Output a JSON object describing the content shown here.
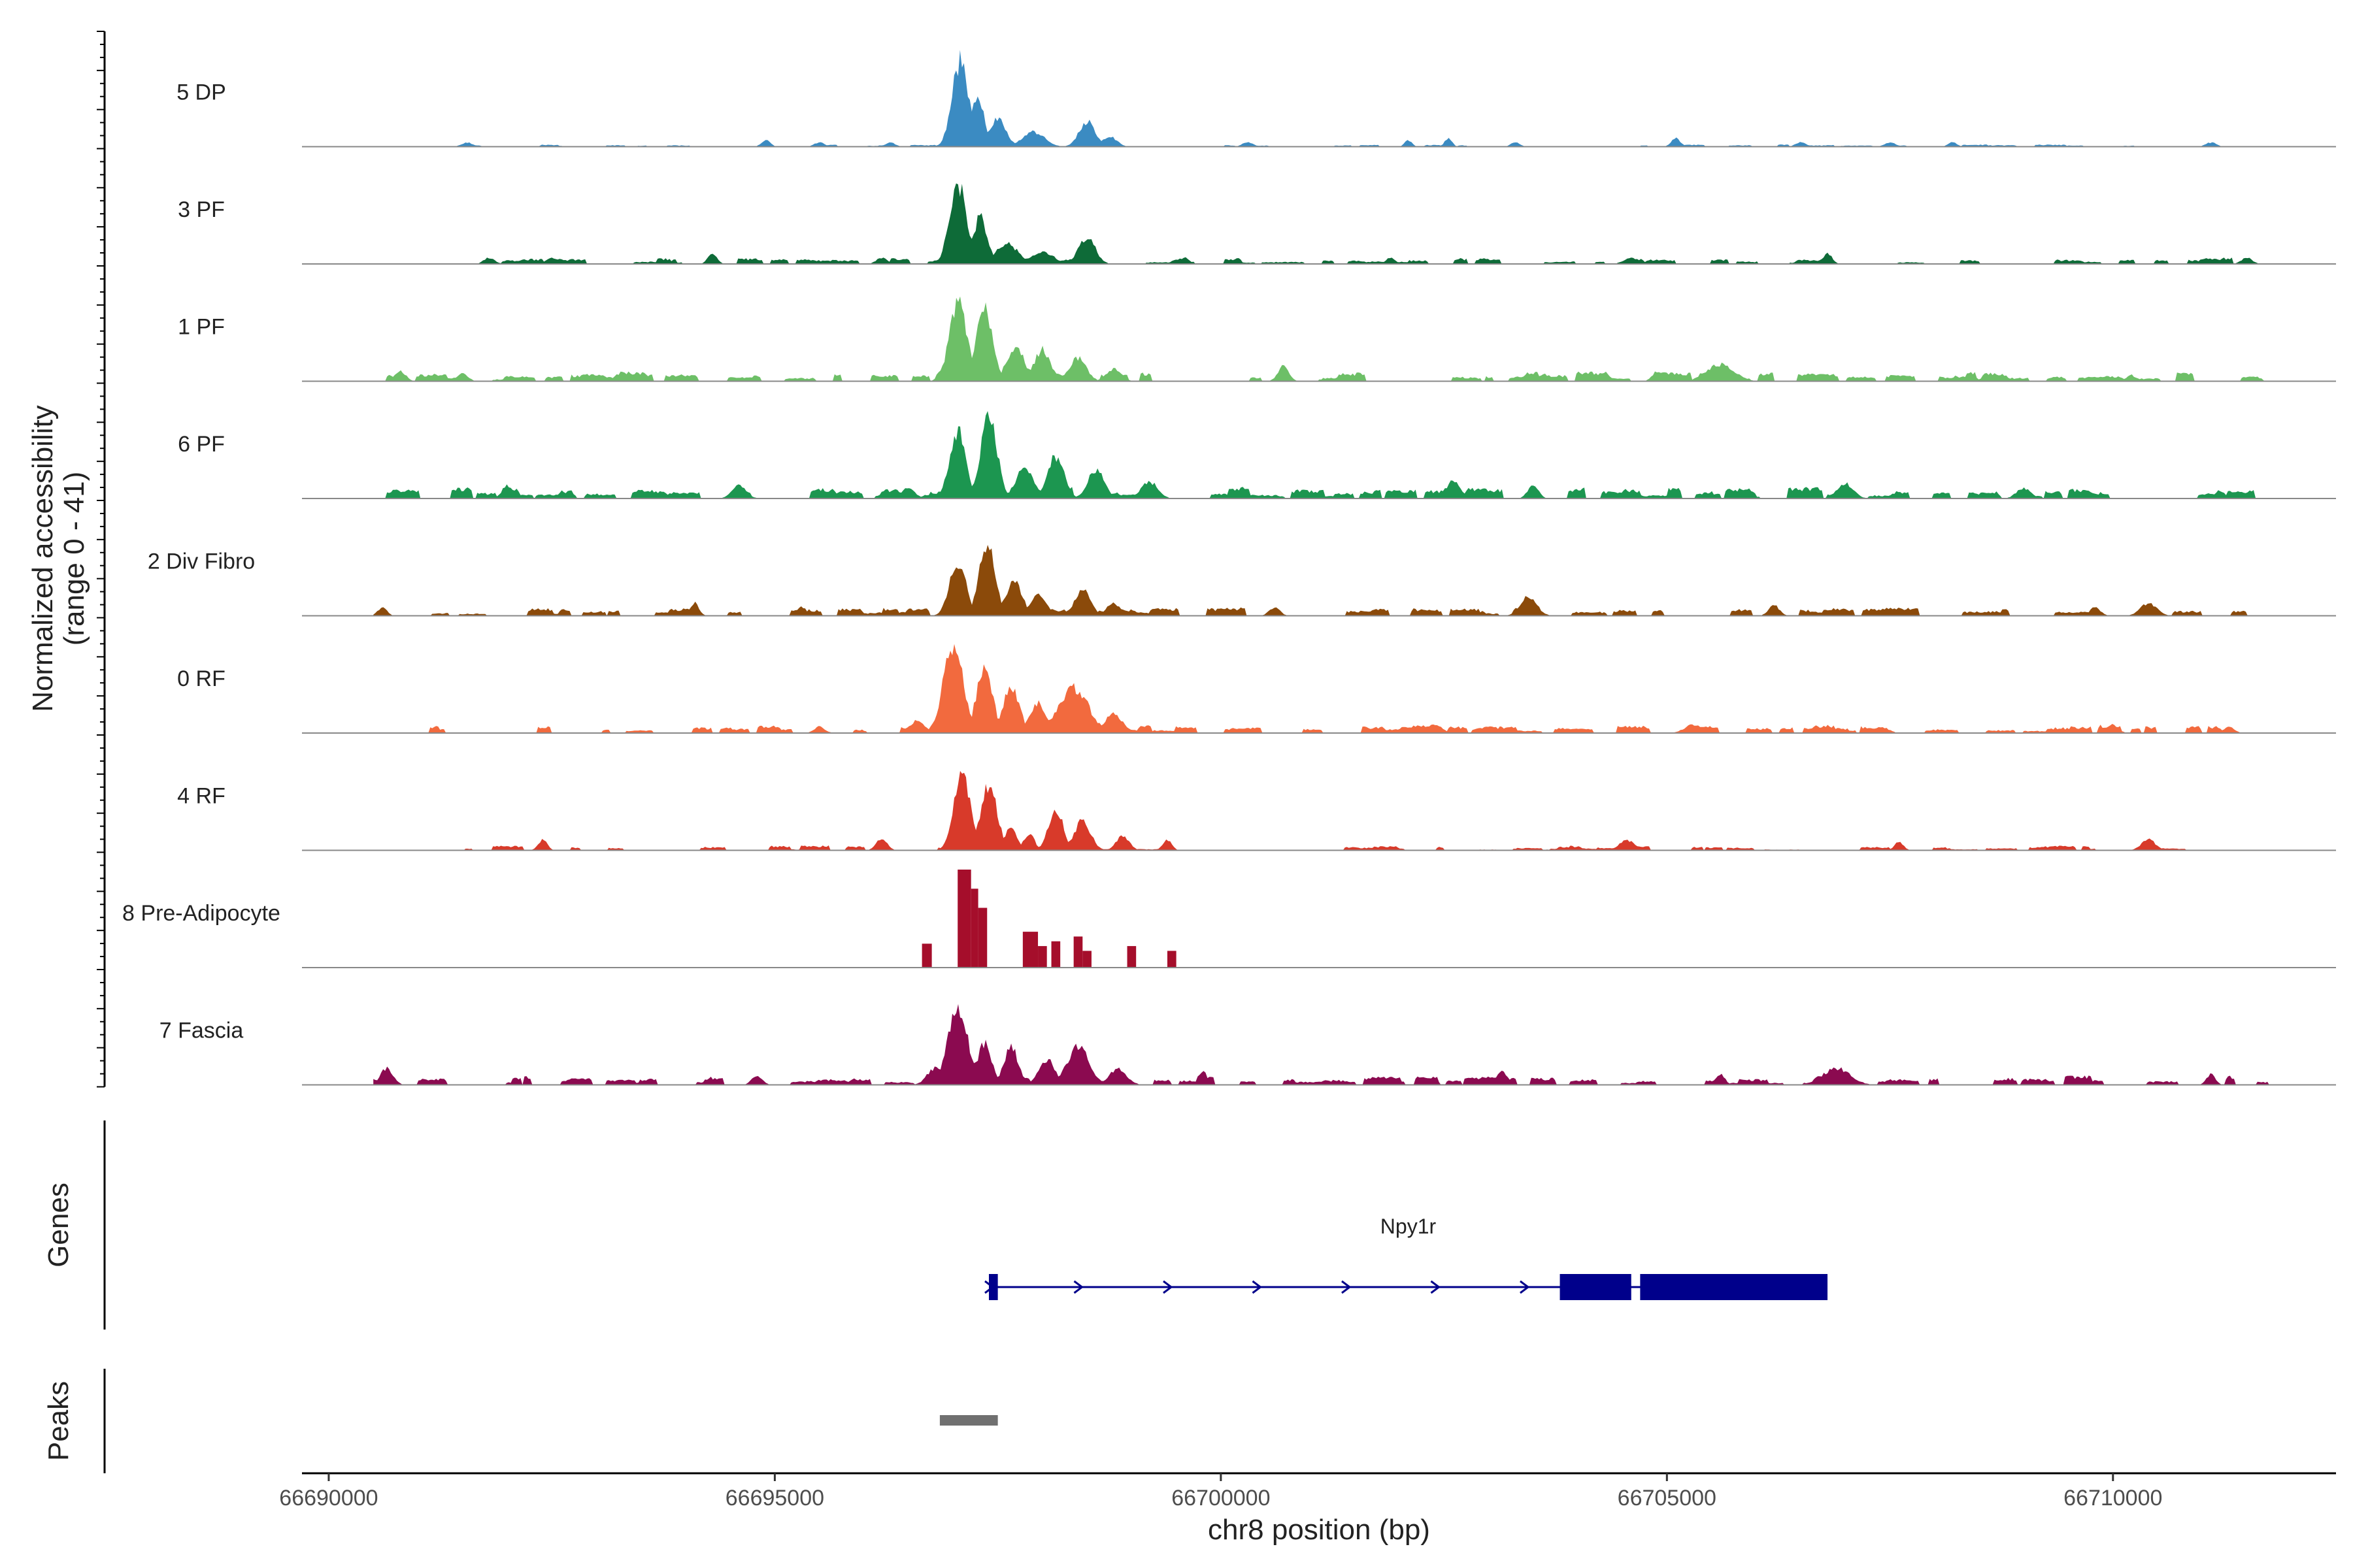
{
  "chart_data": {
    "type": "area",
    "chromosome": "chr8",
    "xlabel": "chr8 position (bp)",
    "ylabel_line1": "Normalized accessibility",
    "ylabel_line2": "(range 0 - 41)",
    "y_range": [
      0,
      41
    ],
    "x_range": [
      66689700,
      66712500
    ],
    "x_ticks": [
      66690000,
      66695000,
      66700000,
      66705000,
      66710000
    ],
    "x_tick_labels": [
      "66690000",
      "66695000",
      "66700000",
      "66705000",
      "66710000"
    ],
    "tracks": [
      {
        "name": "5 DP",
        "color": "#3B8BC2",
        "peaks": [
          [
            66697080,
            41,
            90
          ],
          [
            66697280,
            24,
            70
          ],
          [
            66697500,
            14,
            90
          ],
          [
            66697900,
            7,
            120
          ],
          [
            66698500,
            12,
            90
          ],
          [
            66698750,
            5,
            80
          ],
          [
            66691550,
            2,
            60
          ],
          [
            66694900,
            3,
            50
          ],
          [
            66695500,
            2,
            60
          ],
          [
            66696300,
            2,
            50
          ],
          [
            66700300,
            2,
            60
          ],
          [
            66702100,
            3,
            40
          ],
          [
            66702550,
            4,
            40
          ],
          [
            66703300,
            2,
            50
          ],
          [
            66705100,
            4,
            50
          ],
          [
            66706500,
            2,
            60
          ],
          [
            66707500,
            2,
            60
          ],
          [
            66708200,
            2,
            50
          ],
          [
            66711100,
            2,
            60
          ]
        ],
        "floor": 0.4,
        "noise": 0.6,
        "range": [
          66691400,
          66711300
        ]
      },
      {
        "name": "3 PF",
        "color": "#0E6B38",
        "peaks": [
          [
            66697050,
            39,
            90
          ],
          [
            66697300,
            22,
            80
          ],
          [
            66697600,
            10,
            120
          ],
          [
            66698000,
            6,
            120
          ],
          [
            66698500,
            13,
            90
          ],
          [
            66694300,
            5,
            50
          ],
          [
            66691800,
            3,
            60
          ],
          [
            66692500,
            3,
            60
          ],
          [
            66696200,
            3,
            60
          ],
          [
            66699600,
            3,
            50
          ],
          [
            66701900,
            3,
            50
          ],
          [
            66704600,
            3,
            80
          ],
          [
            66706800,
            5,
            50
          ],
          [
            66711500,
            3,
            60
          ]
        ],
        "floor": 0.6,
        "noise": 2.2,
        "range": [
          66691400,
          66711800
        ]
      },
      {
        "name": "1 PF",
        "color": "#6DBF67",
        "peaks": [
          [
            66697060,
            37,
            100
          ],
          [
            66697350,
            34,
            90
          ],
          [
            66697700,
            16,
            100
          ],
          [
            66698000,
            15,
            90
          ],
          [
            66698400,
            11,
            90
          ],
          [
            66698800,
            6,
            80
          ],
          [
            66690800,
            5,
            60
          ],
          [
            66691500,
            4,
            60
          ],
          [
            66700700,
            7,
            60
          ],
          [
            66705600,
            8,
            150
          ],
          [
            66704900,
            5,
            60
          ],
          [
            66708400,
            3,
            60
          ],
          [
            66710200,
            3,
            50
          ]
        ],
        "floor": 0.8,
        "noise": 3.5,
        "range": [
          66690500,
          66711700
        ]
      },
      {
        "name": "6 PF",
        "color": "#1C9650",
        "peaks": [
          [
            66697050,
            32,
            90
          ],
          [
            66697400,
            40,
            90
          ],
          [
            66697800,
            14,
            100
          ],
          [
            66698150,
            20,
            90
          ],
          [
            66698600,
            14,
            90
          ],
          [
            66699200,
            8,
            90
          ],
          [
            66692000,
            6,
            60
          ],
          [
            66694600,
            6,
            80
          ],
          [
            66696500,
            5,
            70
          ],
          [
            66702600,
            8,
            80
          ],
          [
            66703500,
            6,
            60
          ],
          [
            66707000,
            7,
            90
          ],
          [
            66709000,
            5,
            80
          ],
          [
            66711200,
            4,
            50
          ]
        ],
        "floor": 1.0,
        "noise": 4.0,
        "range": [
          66690500,
          66711600
        ]
      },
      {
        "name": "2 Div Fibro",
        "color": "#8B4A0A",
        "peaks": [
          [
            66697050,
            26,
            90
          ],
          [
            66697380,
            34,
            90
          ],
          [
            66697680,
            17,
            90
          ],
          [
            66697950,
            10,
            90
          ],
          [
            66698450,
            12,
            90
          ],
          [
            66698800,
            6,
            80
          ],
          [
            66695300,
            4,
            60
          ],
          [
            66694100,
            6,
            50
          ],
          [
            66690600,
            4,
            50
          ],
          [
            66700600,
            4,
            60
          ],
          [
            66703450,
            9,
            90
          ],
          [
            66706200,
            5,
            60
          ],
          [
            66710400,
            6,
            90
          ],
          [
            66709800,
            4,
            60
          ]
        ],
        "floor": 0.7,
        "noise": 2.8,
        "range": [
          66690500,
          66711600
        ]
      },
      {
        "name": "0 RF",
        "color": "#F26A3E",
        "peaks": [
          [
            66697000,
            41,
            110
          ],
          [
            66697350,
            30,
            90
          ],
          [
            66697650,
            22,
            90
          ],
          [
            66697950,
            14,
            90
          ],
          [
            66698350,
            22,
            160
          ],
          [
            66698800,
            9,
            100
          ],
          [
            66696600,
            6,
            80
          ],
          [
            66695500,
            3,
            60
          ],
          [
            66702400,
            4,
            80
          ],
          [
            66705300,
            4,
            100
          ],
          [
            66707400,
            3,
            80
          ],
          [
            66710000,
            4,
            60
          ],
          [
            66711300,
            3,
            60
          ]
        ],
        "floor": 1.0,
        "noise": 2.5,
        "range": [
          66690500,
          66711800
        ]
      },
      {
        "name": "4 RF",
        "color": "#D83A2A",
        "peaks": [
          [
            66697100,
            36,
            90
          ],
          [
            66697400,
            32,
            90
          ],
          [
            66697650,
            12,
            60
          ],
          [
            66697850,
            8,
            60
          ],
          [
            66698150,
            20,
            80
          ],
          [
            66698450,
            14,
            90
          ],
          [
            66698900,
            7,
            70
          ],
          [
            66696200,
            6,
            60
          ],
          [
            66692400,
            5,
            50
          ],
          [
            66699400,
            5,
            50
          ],
          [
            66704550,
            5,
            80
          ],
          [
            66707600,
            4,
            50
          ],
          [
            66710400,
            5,
            80
          ]
        ],
        "floor": 0.3,
        "noise": 1.8,
        "range": [
          66690500,
          66711000
        ]
      },
      {
        "name": "8 Pre-Adipocyte",
        "color": "#A50E2B",
        "blocks": [
          [
            66696650,
            66696760,
            10
          ],
          [
            66697050,
            66697200,
            41
          ],
          [
            66697200,
            66697280,
            33
          ],
          [
            66697280,
            66697380,
            25
          ],
          [
            66697780,
            66697950,
            15
          ],
          [
            66697950,
            66698050,
            9
          ],
          [
            66698100,
            66698200,
            11
          ],
          [
            66698350,
            66698450,
            13
          ],
          [
            66698450,
            66698550,
            7
          ],
          [
            66698950,
            66699050,
            9
          ],
          [
            66699400,
            66699500,
            7
          ]
        ]
      },
      {
        "name": "7 Fascia",
        "color": "#8B0A50",
        "peaks": [
          [
            66697050,
            38,
            110
          ],
          [
            66697350,
            20,
            80
          ],
          [
            66697650,
            18,
            80
          ],
          [
            66698050,
            12,
            90
          ],
          [
            66698400,
            18,
            120
          ],
          [
            66698850,
            8,
            90
          ],
          [
            66690650,
            8,
            70
          ],
          [
            66694800,
            4,
            60
          ],
          [
            66696800,
            8,
            90
          ],
          [
            66699800,
            6,
            50
          ],
          [
            66703150,
            6,
            60
          ],
          [
            66706900,
            8,
            150
          ],
          [
            66705600,
            5,
            50
          ],
          [
            66711100,
            5,
            50
          ]
        ],
        "floor": 0.9,
        "noise": 3.2,
        "range": [
          66690500,
          66711800
        ]
      }
    ],
    "gene": {
      "name": "Npy1r",
      "strand": "+",
      "color": "#00008B",
      "start": 66697400,
      "end": 66706800,
      "exons": [
        [
          66697400,
          66697500,
          "thin"
        ],
        [
          66703800,
          66704600,
          "thick"
        ],
        [
          66704700,
          66706800,
          "thick"
        ]
      ]
    },
    "peaks_track": {
      "color": "#707070",
      "regions": [
        [
          66696850,
          66697500
        ]
      ]
    },
    "panel_labels": {
      "genes": "Genes",
      "peaks": "Peaks"
    }
  }
}
